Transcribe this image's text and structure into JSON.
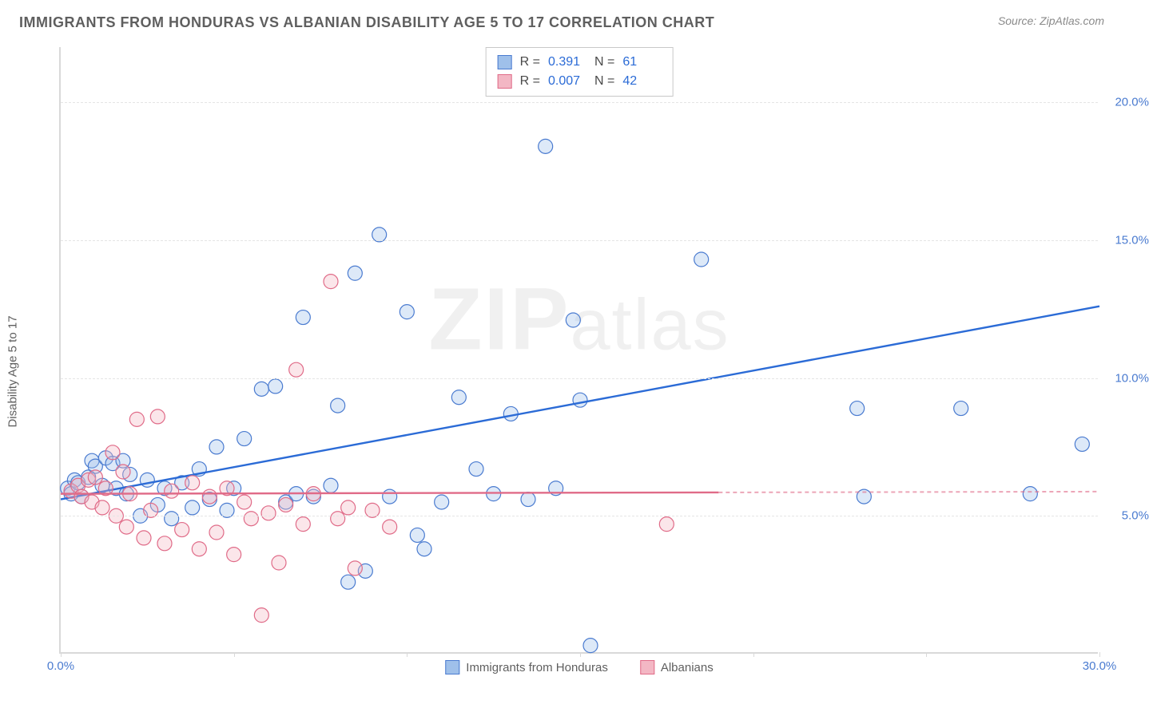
{
  "title": "IMMIGRANTS FROM HONDURAS VS ALBANIAN DISABILITY AGE 5 TO 17 CORRELATION CHART",
  "source_text": "Source: ZipAtlas.com",
  "watermark": "ZIPatlas",
  "chart": {
    "type": "scatter",
    "ylabel": "Disability Age 5 to 17",
    "xlim": [
      0,
      30
    ],
    "ylim": [
      0,
      22
    ],
    "yticks": [
      5.0,
      10.0,
      15.0,
      20.0
    ],
    "ytick_labels": [
      "5.0%",
      "10.0%",
      "15.0%",
      "20.0%"
    ],
    "xticks": [
      0,
      5,
      10,
      15,
      20,
      25,
      30
    ],
    "xtick_labels": [
      "0.0%",
      "",
      "",
      "",
      "",
      "",
      "30.0%"
    ],
    "grid_color": "#e5e5e5",
    "axis_color": "#d9d9d9",
    "tick_label_color": "#4a7bd0",
    "marker_radius": 9,
    "series": [
      {
        "name": "Immigrants from Honduras",
        "color": "#9fc0ea",
        "stroke": "#4a7bd0",
        "line_color": "#2b6bd6",
        "R": "0.391",
        "N": "61",
        "trend": {
          "x0": 0,
          "y0": 5.6,
          "x1": 30,
          "y1": 12.6
        },
        "points": [
          [
            0.2,
            6.0
          ],
          [
            0.3,
            5.8
          ],
          [
            0.4,
            6.3
          ],
          [
            0.5,
            6.2
          ],
          [
            0.6,
            5.7
          ],
          [
            0.8,
            6.4
          ],
          [
            0.9,
            7.0
          ],
          [
            1.0,
            6.8
          ],
          [
            1.2,
            6.1
          ],
          [
            1.3,
            7.1
          ],
          [
            1.5,
            6.9
          ],
          [
            1.6,
            6.0
          ],
          [
            1.8,
            7.0
          ],
          [
            1.9,
            5.8
          ],
          [
            2.0,
            6.5
          ],
          [
            2.3,
            5.0
          ],
          [
            2.5,
            6.3
          ],
          [
            2.8,
            5.4
          ],
          [
            3.0,
            6.0
          ],
          [
            3.2,
            4.9
          ],
          [
            3.5,
            6.2
          ],
          [
            3.8,
            5.3
          ],
          [
            4.0,
            6.7
          ],
          [
            4.3,
            5.6
          ],
          [
            4.5,
            7.5
          ],
          [
            4.8,
            5.2
          ],
          [
            5.0,
            6.0
          ],
          [
            5.3,
            7.8
          ],
          [
            5.8,
            9.6
          ],
          [
            6.2,
            9.7
          ],
          [
            6.5,
            5.5
          ],
          [
            6.8,
            5.8
          ],
          [
            7.0,
            12.2
          ],
          [
            7.3,
            5.7
          ],
          [
            7.8,
            6.1
          ],
          [
            8.0,
            9.0
          ],
          [
            8.3,
            2.6
          ],
          [
            8.5,
            13.8
          ],
          [
            8.8,
            3.0
          ],
          [
            9.2,
            15.2
          ],
          [
            9.5,
            5.7
          ],
          [
            10.0,
            12.4
          ],
          [
            10.3,
            4.3
          ],
          [
            10.5,
            3.8
          ],
          [
            11.0,
            5.5
          ],
          [
            11.5,
            9.3
          ],
          [
            12.0,
            6.7
          ],
          [
            12.5,
            5.8
          ],
          [
            13.0,
            8.7
          ],
          [
            13.5,
            5.6
          ],
          [
            14.0,
            18.4
          ],
          [
            14.3,
            6.0
          ],
          [
            14.8,
            12.1
          ],
          [
            15.0,
            9.2
          ],
          [
            15.3,
            0.3
          ],
          [
            18.5,
            14.3
          ],
          [
            23.0,
            8.9
          ],
          [
            23.2,
            5.7
          ],
          [
            26.0,
            8.9
          ],
          [
            28.0,
            5.8
          ],
          [
            29.5,
            7.6
          ]
        ]
      },
      {
        "name": "Albanians",
        "color": "#f3b7c4",
        "stroke": "#e06b88",
        "line_color": "#e06b88",
        "R": "0.007",
        "N": "42",
        "trend": {
          "x0": 0,
          "y0": 5.8,
          "x1": 19,
          "y1": 5.85
        },
        "trend_extend_to": 30,
        "points": [
          [
            0.3,
            5.9
          ],
          [
            0.5,
            6.1
          ],
          [
            0.6,
            5.7
          ],
          [
            0.8,
            6.3
          ],
          [
            0.9,
            5.5
          ],
          [
            1.0,
            6.4
          ],
          [
            1.2,
            5.3
          ],
          [
            1.3,
            6.0
          ],
          [
            1.5,
            7.3
          ],
          [
            1.6,
            5.0
          ],
          [
            1.8,
            6.6
          ],
          [
            1.9,
            4.6
          ],
          [
            2.0,
            5.8
          ],
          [
            2.2,
            8.5
          ],
          [
            2.4,
            4.2
          ],
          [
            2.6,
            5.2
          ],
          [
            2.8,
            8.6
          ],
          [
            3.0,
            4.0
          ],
          [
            3.2,
            5.9
          ],
          [
            3.5,
            4.5
          ],
          [
            3.8,
            6.2
          ],
          [
            4.0,
            3.8
          ],
          [
            4.3,
            5.7
          ],
          [
            4.5,
            4.4
          ],
          [
            4.8,
            6.0
          ],
          [
            5.0,
            3.6
          ],
          [
            5.3,
            5.5
          ],
          [
            5.5,
            4.9
          ],
          [
            5.8,
            1.4
          ],
          [
            6.0,
            5.1
          ],
          [
            6.3,
            3.3
          ],
          [
            6.5,
            5.4
          ],
          [
            6.8,
            10.3
          ],
          [
            7.0,
            4.7
          ],
          [
            7.3,
            5.8
          ],
          [
            7.8,
            13.5
          ],
          [
            8.0,
            4.9
          ],
          [
            8.3,
            5.3
          ],
          [
            8.5,
            3.1
          ],
          [
            9.0,
            5.2
          ],
          [
            9.5,
            4.6
          ],
          [
            17.5,
            4.7
          ]
        ]
      }
    ],
    "bottom_legend": [
      "Immigrants from Honduras",
      "Albanians"
    ]
  }
}
